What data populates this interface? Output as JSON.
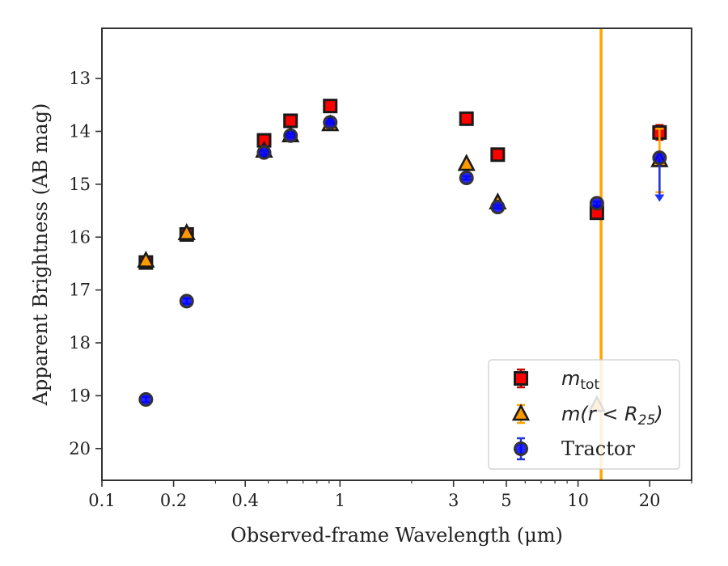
{
  "chart_data": {
    "type": "scatter",
    "title": "",
    "xlabel": "Observed-frame Wavelength (μm)",
    "ylabel": "Apparent Brightness (AB mag)",
    "xscale": "log",
    "xlim": [
      0.1,
      30
    ],
    "ylim": [
      20.6,
      12.05
    ],
    "y_inverted": true,
    "xticks": [
      0.1,
      0.2,
      0.4,
      1,
      3,
      5,
      10,
      20
    ],
    "xtick_labels": [
      "0.1",
      "0.2",
      "0.4",
      "1",
      "3",
      "5",
      "10",
      "20"
    ],
    "yticks": [
      13,
      14,
      15,
      16,
      17,
      18,
      19,
      20
    ],
    "ytick_labels": [
      "13",
      "14",
      "15",
      "16",
      "17",
      "18",
      "19",
      "20"
    ],
    "vline": {
      "x": 12.5,
      "color": "#ffa500"
    },
    "legend_position": "lower-right",
    "series": [
      {
        "name": "m_tot",
        "legend_main": "m",
        "legend_sub": "tot",
        "marker": "square",
        "color": "#ff0000",
        "ecolor": "#cc0000",
        "points": [
          {
            "x": 0.153,
            "y": 16.48,
            "err": 0.03
          },
          {
            "x": 0.227,
            "y": 15.95,
            "err": 0.03
          },
          {
            "x": 0.48,
            "y": 14.17,
            "err": 0.03
          },
          {
            "x": 0.62,
            "y": 13.8,
            "err": 0.03
          },
          {
            "x": 0.91,
            "y": 13.52,
            "err": 0.03
          },
          {
            "x": 3.4,
            "y": 13.76,
            "err": 0.03
          },
          {
            "x": 4.6,
            "y": 14.44,
            "err": 0.03
          },
          {
            "x": 12.0,
            "y": 15.54,
            "err": 0.04
          },
          {
            "x": 22.0,
            "y": 14.02,
            "err": 0.14
          }
        ]
      },
      {
        "name": "m(r < R25)",
        "legend_main": "m(r < R",
        "legend_sub": "25",
        "legend_close": ")",
        "marker": "triangle",
        "color": "#ff9900",
        "ecolor": "#ffa500",
        "points": [
          {
            "x": 0.153,
            "y": 16.45,
            "err": 0.03
          },
          {
            "x": 0.227,
            "y": 15.93,
            "err": 0.03
          },
          {
            "x": 0.48,
            "y": 14.37,
            "err": 0.03
          },
          {
            "x": 0.62,
            "y": 14.08,
            "err": 0.03
          },
          {
            "x": 0.91,
            "y": 13.87,
            "err": 0.03
          },
          {
            "x": 3.4,
            "y": 14.62,
            "err": 0.03
          },
          {
            "x": 4.6,
            "y": 15.35,
            "err": 0.03
          },
          {
            "x": 12.0,
            "y": 19.18,
            "err": 0.0
          },
          {
            "x": 22.0,
            "y": 14.55,
            "err": 0.6
          }
        ]
      },
      {
        "name": "Tractor",
        "legend_main": "Tractor",
        "marker": "circle",
        "color": "#0000ff",
        "ecolor": "#2233dd",
        "points": [
          {
            "x": 0.153,
            "y": 19.07,
            "err": 0.05
          },
          {
            "x": 0.227,
            "y": 17.21,
            "err": 0.05
          },
          {
            "x": 0.48,
            "y": 14.4,
            "err": 0.03
          },
          {
            "x": 0.62,
            "y": 14.08,
            "err": 0.03
          },
          {
            "x": 0.91,
            "y": 13.83,
            "err": 0.03
          },
          {
            "x": 3.4,
            "y": 14.88,
            "err": 0.03
          },
          {
            "x": 4.6,
            "y": 15.43,
            "err": 0.03
          },
          {
            "x": 12.0,
            "y": 15.36,
            "err": 0.03
          },
          {
            "x": 22.0,
            "y": 14.5,
            "err": 0.0,
            "upper_limit_to": 15.3
          }
        ]
      }
    ]
  }
}
